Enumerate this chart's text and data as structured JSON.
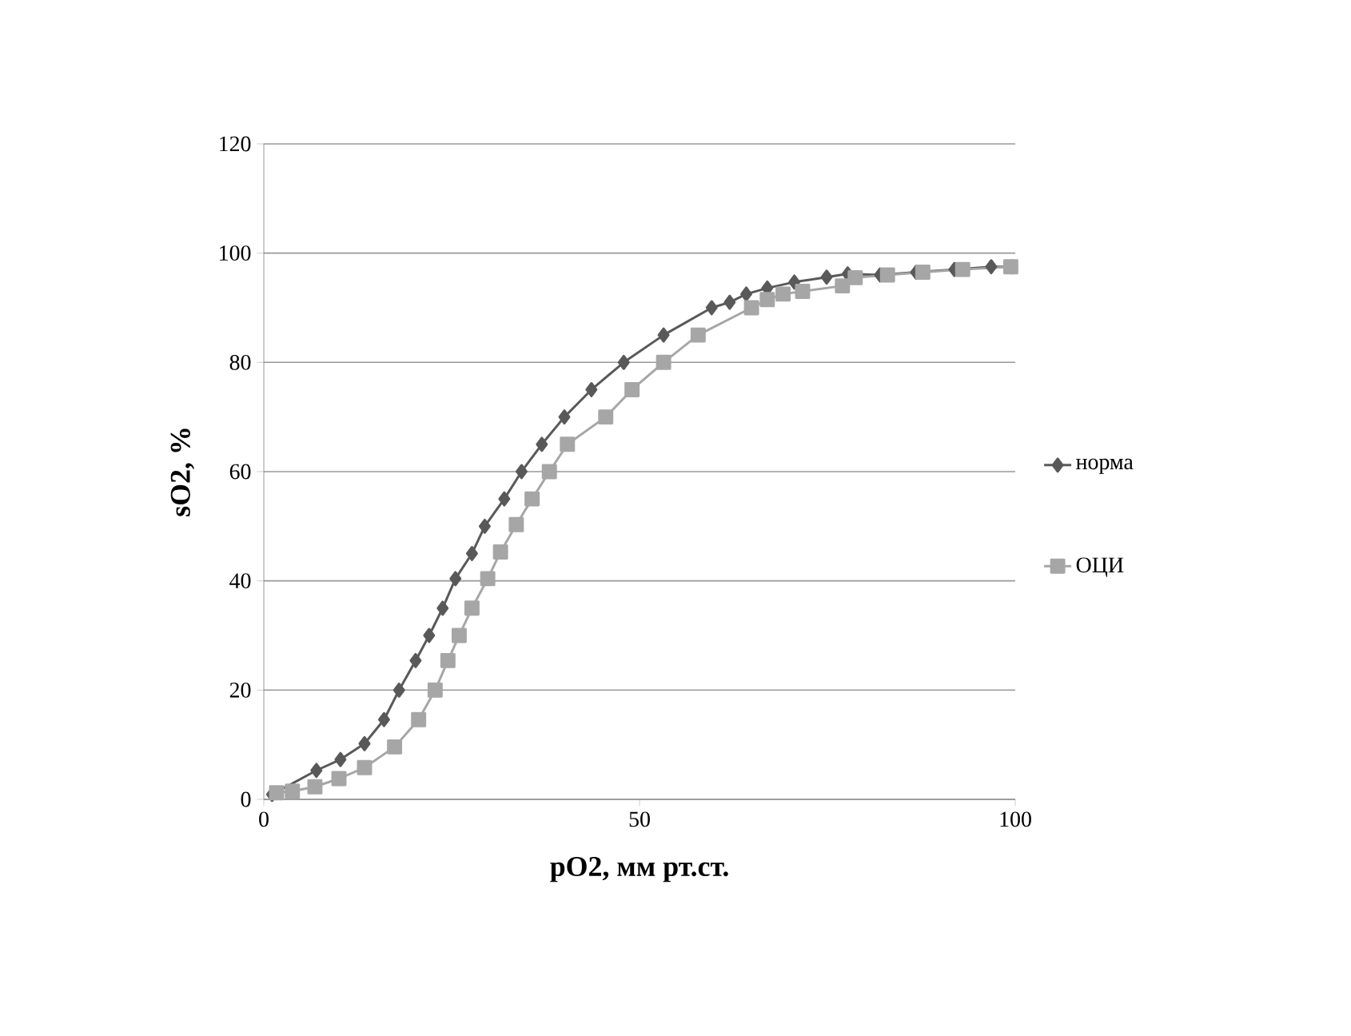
{
  "chart_data": {
    "type": "line",
    "xlabel": "pO2, мм рт.ст.",
    "ylabel": "sO2, %",
    "xlim": [
      0,
      100
    ],
    "ylim": [
      0,
      120
    ],
    "xticks": [
      0,
      50,
      100
    ],
    "yticks": [
      0,
      20,
      40,
      60,
      80,
      100,
      120
    ],
    "grid": "y",
    "legend": "right",
    "line_style": "solid",
    "series": [
      {
        "name": "норма",
        "color": "#595959",
        "marker": "diamond",
        "x": [
          1.1,
          7,
          10.2,
          13.4,
          16,
          18,
          20.2,
          22,
          23.8,
          25.5,
          27.7,
          29.4,
          32,
          34.3,
          37,
          40,
          43.6,
          47.9,
          53.2,
          59.6,
          62,
          64.2,
          67,
          70.6,
          74.9,
          77.7,
          82,
          86.8,
          91.9,
          96.8,
          99.6
        ],
        "values": [
          0.9,
          5.3,
          7.3,
          10.2,
          14.6,
          20,
          25.4,
          30,
          35,
          40.4,
          45,
          50,
          55,
          60,
          65,
          70,
          75,
          80,
          85,
          90,
          91,
          92.5,
          93.6,
          94.7,
          95.6,
          96.2,
          96,
          96.5,
          97,
          97.5,
          97.5
        ]
      },
      {
        "name": "ОЦИ",
        "color": "#a6a6a6",
        "marker": "square",
        "x": [
          1.7,
          3.8,
          6.8,
          10,
          13.4,
          17.4,
          20.6,
          22.8,
          24.5,
          26,
          27.7,
          29.8,
          31.5,
          33.6,
          35.7,
          38,
          40.4,
          45.5,
          49,
          53.2,
          57.8,
          64.9,
          67,
          69.1,
          71.7,
          77,
          78.7,
          83,
          87.7,
          93,
          99.4
        ],
        "values": [
          1.2,
          1.5,
          2.3,
          3.8,
          5.8,
          9.6,
          14.6,
          20,
          25.4,
          30,
          35,
          40.4,
          45.3,
          50.3,
          55,
          60,
          65,
          70,
          75,
          80,
          85,
          90,
          91.5,
          92.5,
          93,
          94,
          95.5,
          96,
          96.5,
          97,
          97.5
        ]
      }
    ]
  }
}
